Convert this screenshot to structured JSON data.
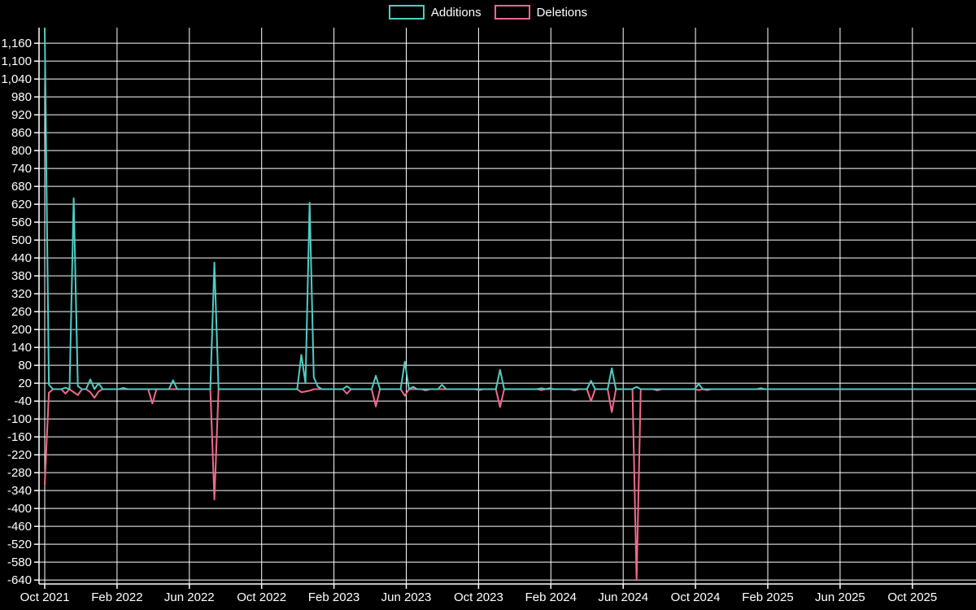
{
  "chart_data": {
    "type": "line",
    "title": "",
    "background_color": "#000000",
    "grid_color": "#ffffff",
    "text_color": "#ffffff",
    "legend": {
      "position": "top-center",
      "items": [
        {
          "label": "Additions",
          "color": "#4ECDC4"
        },
        {
          "label": "Deletions",
          "color": "#F4688A"
        }
      ]
    },
    "axes": {
      "y": {
        "min": -640,
        "max": 1160,
        "step": 60,
        "grid": true,
        "tick_values": [
          1160,
          1100,
          1040,
          980,
          920,
          860,
          800,
          740,
          680,
          620,
          560,
          500,
          440,
          380,
          320,
          260,
          200,
          140,
          80,
          20,
          -40,
          -100,
          -160,
          -220,
          -280,
          -340,
          -400,
          -460,
          -520,
          -580,
          -640
        ],
        "tick_labels": [
          "1,160",
          "1,100",
          "1,040",
          "980",
          "920",
          "860",
          "800",
          "740",
          "680",
          "620",
          "560",
          "500",
          "440",
          "380",
          "320",
          "260",
          "200",
          "140",
          "80",
          "20",
          "-40",
          "-100",
          "-160",
          "-220",
          "-280",
          "-340",
          "-400",
          "-460",
          "-520",
          "-580",
          "-640"
        ]
      },
      "x": {
        "grid": true,
        "unit": "weeks starting Oct 2021",
        "total_weeks": 226,
        "weeks_per_tick": 17.48,
        "tick_labels": [
          "Oct 2021",
          "Feb 2022",
          "Jun 2022",
          "Oct 2022",
          "Feb 2023",
          "Jun 2023",
          "Oct 2023",
          "Feb 2024",
          "Jun 2024",
          "Oct 2024",
          "Feb 2025",
          "Jun 2025",
          "Oct 2025"
        ]
      }
    },
    "series": [
      {
        "name": "Additions",
        "color": "#4ECDC4",
        "default_value": 0,
        "nonzero_by_week": {
          "0": 1210,
          "1": 15,
          "5": 5,
          "7": 640,
          "8": 10,
          "11": 33,
          "13": 20,
          "19": 4,
          "31": 30,
          "41": 425,
          "62": 115,
          "63": 20,
          "64": 625,
          "65": 40,
          "66": 8,
          "73": 10,
          "80": 45,
          "87": 92,
          "89": 8,
          "96": 15,
          "110": 65,
          "120": 3,
          "122": 3,
          "132": 28,
          "137": 70,
          "143": 8,
          "158": 18,
          "173": 3
        }
      },
      {
        "name": "Deletions",
        "color": "#F4688A",
        "default_value": 0,
        "nonzero_by_week": {
          "0": -320,
          "1": -12,
          "5": -15,
          "7": -10,
          "8": -20,
          "11": -10,
          "12": -29,
          "13": -8,
          "26": -48,
          "41": -370,
          "62": -10,
          "63": -8,
          "64": -5,
          "73": -15,
          "80": -58,
          "87": -22,
          "92": -4,
          "105": -3,
          "110": -60,
          "120": -3,
          "128": -4,
          "132": -40,
          "137": -77,
          "143": -640,
          "148": -4,
          "158": -3,
          "160": -3
        }
      }
    ]
  }
}
